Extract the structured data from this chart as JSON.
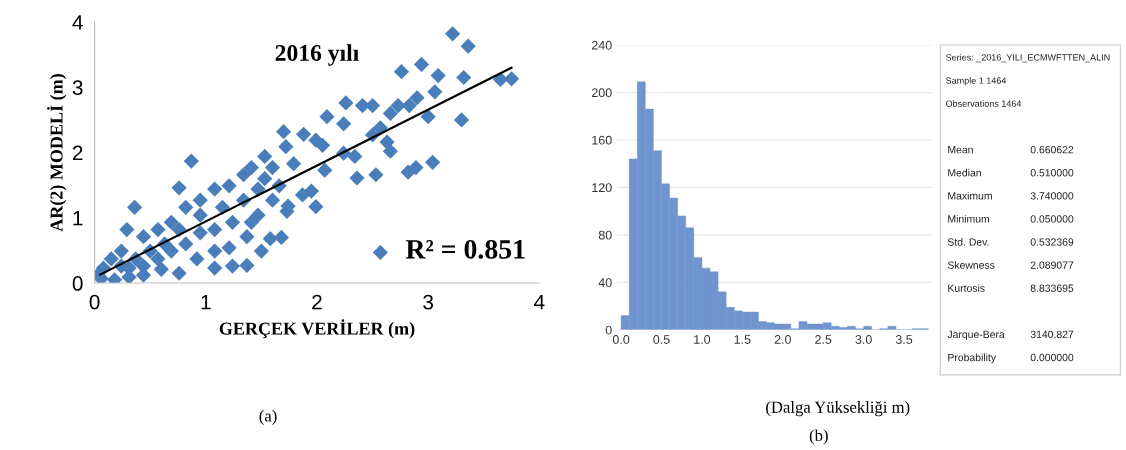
{
  "chart_data": [
    {
      "type": "scatter",
      "title": "2016 yılı",
      "xlabel": "GERÇEK VERİLER (m)",
      "ylabel": "AR(2) MODELİ (m)",
      "annotations": [
        "R² = 0.851",
        "(a)"
      ],
      "series": [
        {
          "type": "scatter",
          "color": "#4a7ebb",
          "x": [
            3.22,
            3.36,
            2.76,
            2.94,
            3.09,
            3.32,
            3.65,
            3.75,
            3.06,
            2.9,
            2.83,
            3.0,
            3.3,
            2.66,
            2.73,
            2.5,
            2.41,
            2.26,
            2.09,
            2.24,
            2.57,
            2.63,
            2.66,
            2.5,
            2.34,
            2.24,
            3.04,
            2.89,
            2.82,
            2.53,
            2.36,
            2.07,
            1.99,
            1.95,
            1.87,
            1.73,
            1.74,
            1.68,
            1.58,
            1.5,
            1.37,
            1.24,
            1.08,
            1.37,
            1.7,
            1.72,
            1.88,
            2.05,
            1.99,
            0.87,
            0.76,
            0.36,
            1.53,
            1.6,
            1.79,
            1.41,
            1.34,
            1.21,
            1.08,
            0.95,
            0.82,
            0.69,
            0.57,
            0.44,
            0.29,
            0.24,
            0.15,
            0.08,
            0.03,
            0.06,
            0.18,
            0.31,
            0.44,
            0.6,
            0.76,
            0.92,
            1.08,
            1.21,
            1.41,
            1.47,
            1.6,
            1.66,
            1.24,
            1.08,
            0.95,
            0.82,
            0.69,
            0.57,
            0.44,
            0.31,
            0.76,
            0.63,
            0.5,
            0.37,
            0.24,
            0.95,
            1.15,
            1.34,
            1.47,
            1.53,
            2.57
          ],
          "values": [
            3.82,
            3.63,
            3.24,
            3.35,
            3.18,
            3.15,
            3.12,
            3.13,
            2.93,
            2.84,
            2.72,
            2.55,
            2.5,
            2.6,
            2.72,
            2.72,
            2.72,
            2.76,
            2.55,
            2.44,
            2.38,
            2.16,
            2.02,
            2.27,
            1.94,
            1.99,
            1.85,
            1.77,
            1.7,
            1.66,
            1.61,
            1.73,
            1.17,
            1.41,
            1.35,
            1.1,
            1.18,
            0.7,
            0.68,
            0.49,
            0.27,
            0.26,
            0.23,
            0.71,
            2.32,
            2.09,
            2.28,
            2.11,
            2.19,
            1.87,
            1.46,
            1.16,
            1.94,
            1.77,
            1.83,
            1.77,
            1.66,
            1.49,
            1.44,
            1.27,
            1.16,
            0.93,
            0.82,
            0.71,
            0.82,
            0.49,
            0.37,
            0.23,
            0.12,
            0.07,
            0.05,
            0.09,
            0.12,
            0.21,
            0.15,
            0.37,
            0.49,
            0.54,
            0.93,
            1.04,
            1.27,
            1.49,
            0.93,
            0.82,
            0.77,
            0.6,
            0.49,
            0.37,
            0.26,
            0.23,
            0.82,
            0.6,
            0.49,
            0.37,
            0.26,
            1.04,
            1.16,
            1.27,
            1.44,
            1.6,
            0.47
          ]
        },
        {
          "type": "line",
          "marker": "none",
          "color": "#000000",
          "x": [
            0.05,
            3.75
          ],
          "values": [
            0.13,
            3.3
          ]
        }
      ],
      "xlim": [
        0,
        4
      ],
      "ylim": [
        0,
        4
      ],
      "xticks": [
        0,
        1,
        2,
        3,
        4
      ],
      "yticks": [
        0,
        1,
        2,
        3,
        4
      ],
      "marker": "diamond"
    },
    {
      "type": "histogram",
      "xlabel": "(Dalga Yüksekliği m)",
      "annotations": [
        "(b)"
      ],
      "color": "#7094cd",
      "bins": [
        0.0,
        0.1,
        0.2,
        0.3,
        0.4,
        0.5,
        0.6,
        0.7,
        0.8,
        0.9,
        1.0,
        1.1,
        1.2,
        1.3,
        1.4,
        1.5,
        1.6,
        1.7,
        1.8,
        1.9,
        2.0,
        2.1,
        2.2,
        2.3,
        2.4,
        2.5,
        2.6,
        2.7,
        2.8,
        2.9,
        3.0,
        3.1,
        3.2,
        3.3,
        3.4,
        3.5,
        3.6,
        3.7,
        3.8
      ],
      "values": [
        12,
        144,
        209,
        186,
        151,
        123,
        111,
        96,
        86,
        61,
        52,
        49,
        32,
        19,
        16,
        15,
        15,
        7,
        6,
        5,
        5,
        1,
        7,
        5,
        5,
        6,
        3,
        2,
        3,
        1,
        3,
        0,
        1,
        3,
        0,
        0,
        1,
        1
      ],
      "xlim": [
        -0.05,
        3.85
      ],
      "ylim": [
        0,
        240
      ],
      "xticks": [
        {
          "value": 0,
          "label": "0.0"
        },
        {
          "value": 0.5,
          "label": "0.5"
        },
        {
          "value": 1,
          "label": "1.0"
        },
        {
          "value": 1.5,
          "label": "1.5"
        },
        {
          "value": 2,
          "label": "2.0"
        },
        {
          "value": 2.5,
          "label": "2.5"
        },
        {
          "value": 3,
          "label": "3.0"
        },
        {
          "value": 3.5,
          "label": "3.5"
        }
      ],
      "yticks": [
        0,
        40,
        80,
        120,
        160,
        200,
        240
      ],
      "grid": "y"
    },
    {
      "type": "other",
      "annotations": [
        "Series: _2016_YILI_ECMWFTTEN_ALIN",
        "Sample 1 1464",
        "Observations 1464",
        "Mean",
        "0.660622",
        "Median",
        "0.510000",
        "Maximum",
        "3.740000",
        "Minimum",
        "0.050000",
        "Std. Dev.",
        "0.532369",
        "Skewness",
        "2.089077",
        "Kurtosis",
        "8.833695",
        "Jarque-Bera",
        "3140.827",
        "Probability",
        "0.000000"
      ]
    }
  ]
}
